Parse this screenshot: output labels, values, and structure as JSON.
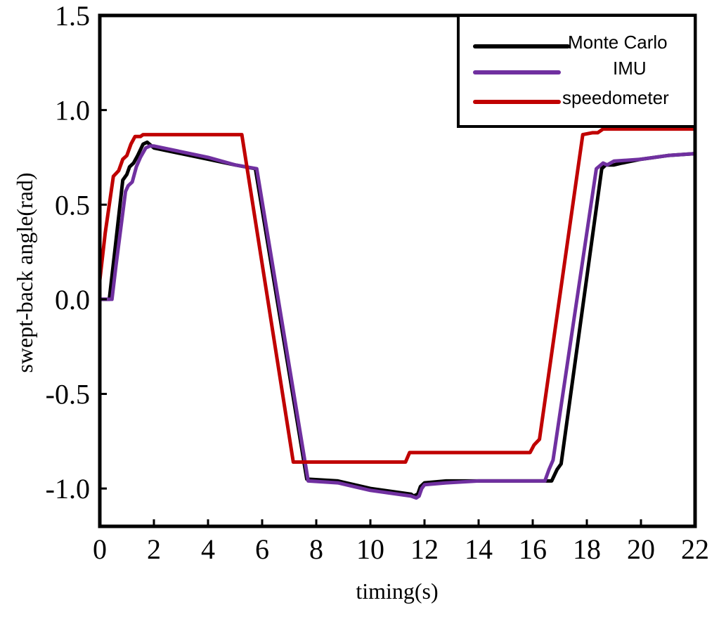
{
  "chart_data": {
    "type": "line",
    "title": "",
    "xlabel": "timing(s)",
    "ylabel": "swept-back angle(rad)",
    "xlim": [
      0,
      22
    ],
    "ylim": [
      -1.2,
      1.5
    ],
    "xticks": [
      0,
      2,
      4,
      6,
      8,
      10,
      12,
      14,
      16,
      18,
      20,
      22
    ],
    "yticks": [
      1.5,
      1.0,
      0.5,
      0.0,
      -0.5,
      -1.0
    ],
    "ytick_labels": [
      "1.5",
      "1.0",
      "0.5",
      "0.0",
      "-0.5",
      "-1.0"
    ],
    "grid": false,
    "legend_position": "top-right",
    "series": [
      {
        "name": "Monte Carlo",
        "color": "#000000",
        "points": [
          [
            0,
            0.0
          ],
          [
            0.35,
            0.0
          ],
          [
            0.55,
            0.25
          ],
          [
            0.85,
            0.63
          ],
          [
            1.0,
            0.66
          ],
          [
            1.1,
            0.7
          ],
          [
            1.25,
            0.72
          ],
          [
            1.4,
            0.76
          ],
          [
            1.6,
            0.82
          ],
          [
            1.75,
            0.83
          ],
          [
            2.0,
            0.8
          ],
          [
            4.0,
            0.74
          ],
          [
            5.0,
            0.71
          ],
          [
            5.75,
            0.69
          ],
          [
            7.65,
            -0.95
          ],
          [
            8.8,
            -0.96
          ],
          [
            10.0,
            -1.0
          ],
          [
            11.5,
            -1.03
          ],
          [
            11.6,
            -1.04
          ],
          [
            11.75,
            -1.03
          ],
          [
            11.85,
            -0.99
          ],
          [
            12.0,
            -0.97
          ],
          [
            12.8,
            -0.96
          ],
          [
            14.0,
            -0.96
          ],
          [
            15.5,
            -0.96
          ],
          [
            16.7,
            -0.96
          ],
          [
            16.9,
            -0.9
          ],
          [
            17.05,
            -0.87
          ],
          [
            18.55,
            0.69
          ],
          [
            18.7,
            0.71
          ],
          [
            19.0,
            0.71
          ],
          [
            19.3,
            0.72
          ],
          [
            20.0,
            0.74
          ],
          [
            21.0,
            0.76
          ],
          [
            22.0,
            0.77
          ]
        ]
      },
      {
        "name": "IMU",
        "color": "#7030A0",
        "points": [
          [
            0,
            0.0
          ],
          [
            0.45,
            0.0
          ],
          [
            0.6,
            0.18
          ],
          [
            0.95,
            0.57
          ],
          [
            1.05,
            0.6
          ],
          [
            1.2,
            0.62
          ],
          [
            1.35,
            0.7
          ],
          [
            1.5,
            0.75
          ],
          [
            1.7,
            0.8
          ],
          [
            1.85,
            0.81
          ],
          [
            2.0,
            0.81
          ],
          [
            4.0,
            0.75
          ],
          [
            5.0,
            0.71
          ],
          [
            5.8,
            0.69
          ],
          [
            7.7,
            -0.96
          ],
          [
            8.8,
            -0.97
          ],
          [
            10.0,
            -1.01
          ],
          [
            11.5,
            -1.04
          ],
          [
            11.7,
            -1.05
          ],
          [
            11.8,
            -1.04
          ],
          [
            11.9,
            -1.0
          ],
          [
            12.0,
            -0.98
          ],
          [
            12.8,
            -0.97
          ],
          [
            14.0,
            -0.96
          ],
          [
            15.5,
            -0.96
          ],
          [
            16.45,
            -0.96
          ],
          [
            16.6,
            -0.9
          ],
          [
            16.75,
            -0.85
          ],
          [
            18.35,
            0.69
          ],
          [
            18.6,
            0.72
          ],
          [
            18.75,
            0.71
          ],
          [
            19.0,
            0.73
          ],
          [
            20.0,
            0.74
          ],
          [
            21.0,
            0.76
          ],
          [
            22.0,
            0.77
          ]
        ]
      },
      {
        "name": "speedometer",
        "color": "#C00000",
        "points": [
          [
            0,
            0.1
          ],
          [
            0.2,
            0.35
          ],
          [
            0.5,
            0.65
          ],
          [
            0.7,
            0.68
          ],
          [
            0.85,
            0.74
          ],
          [
            1.0,
            0.76
          ],
          [
            1.15,
            0.82
          ],
          [
            1.3,
            0.86
          ],
          [
            1.5,
            0.86
          ],
          [
            1.6,
            0.87
          ],
          [
            2.0,
            0.87
          ],
          [
            5.25,
            0.87
          ],
          [
            7.15,
            -0.86
          ],
          [
            11.3,
            -0.86
          ],
          [
            11.45,
            -0.81
          ],
          [
            15.9,
            -0.81
          ],
          [
            16.05,
            -0.77
          ],
          [
            16.25,
            -0.74
          ],
          [
            17.85,
            0.87
          ],
          [
            18.2,
            0.88
          ],
          [
            18.4,
            0.88
          ],
          [
            18.6,
            0.9
          ],
          [
            19.0,
            0.9
          ],
          [
            22.0,
            0.9
          ]
        ]
      }
    ]
  }
}
